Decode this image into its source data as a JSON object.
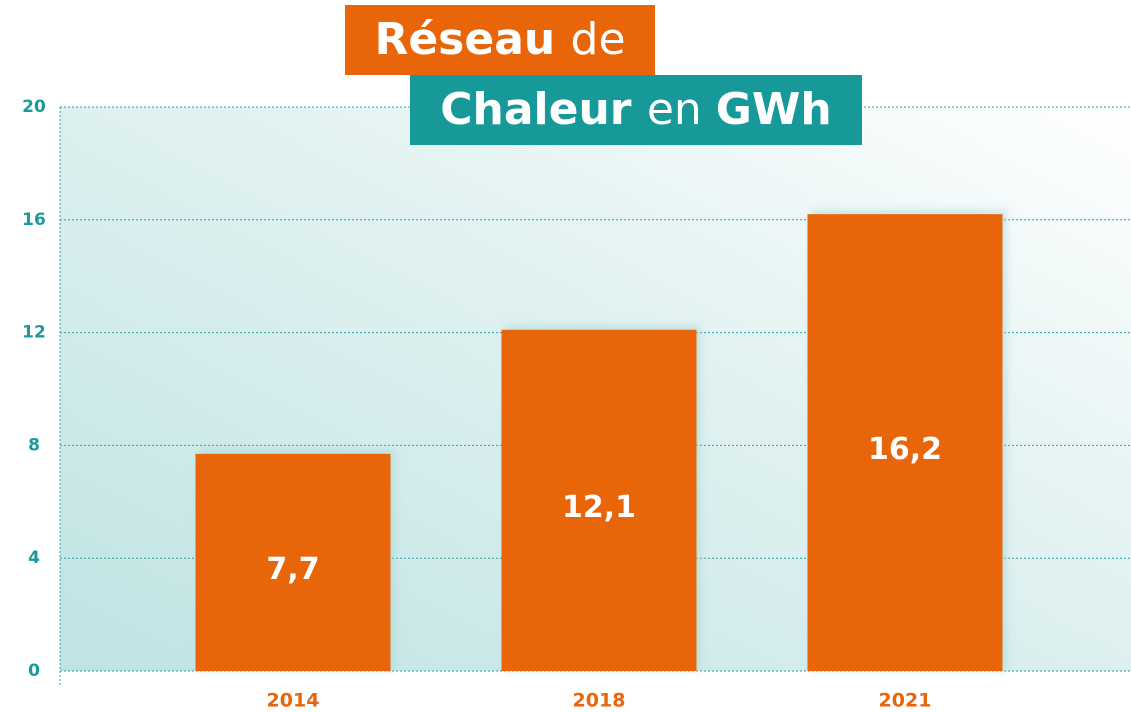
{
  "chart_data": {
    "type": "bar",
    "title": [
      "Réseau de",
      "Chaleur en GWh"
    ],
    "categories": [
      "2014",
      "2018",
      "2021"
    ],
    "values": [
      7.7,
      12.1,
      16.2
    ],
    "value_labels": [
      "7,7",
      "12,1",
      "16,2"
    ],
    "color": "#e8650a",
    "ylim": [
      0,
      20
    ],
    "yticks": [
      0,
      4,
      8,
      12,
      16,
      20
    ],
    "grid": true
  }
}
